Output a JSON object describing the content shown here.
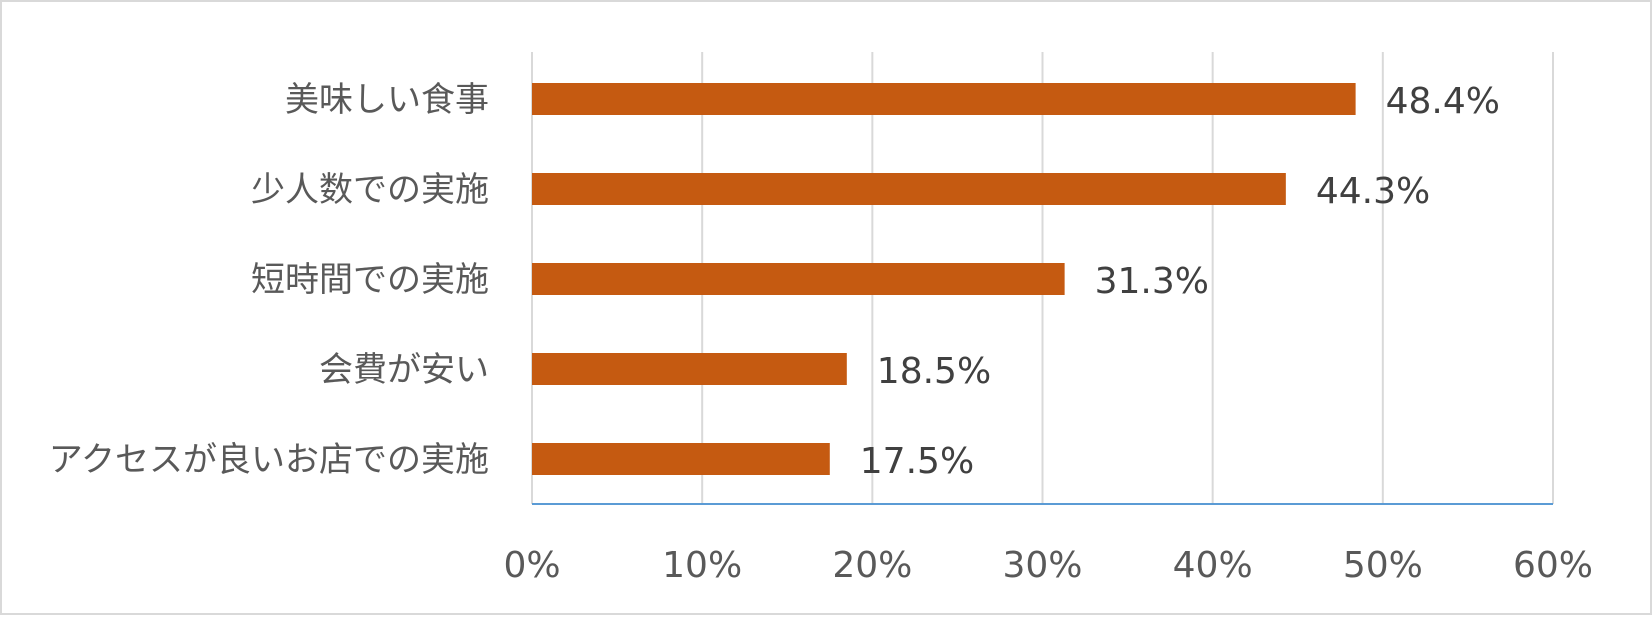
{
  "chart_data": {
    "type": "bar",
    "orientation": "horizontal",
    "categories": [
      "美味しい食事",
      "少人数での実施",
      "短時間での実施",
      "会費が安い",
      "アクセスが良いお店での実施"
    ],
    "values": [
      48.4,
      44.3,
      31.3,
      18.5,
      17.5
    ],
    "data_labels": [
      "48.4%",
      "44.3%",
      "31.3%",
      "18.5%",
      "17.5%"
    ],
    "xlim": [
      0,
      60
    ],
    "x_ticks": [
      0,
      10,
      20,
      30,
      40,
      50,
      60
    ],
    "x_tick_labels": [
      "0%",
      "10%",
      "20%",
      "30%",
      "40%",
      "50%",
      "60%"
    ],
    "grid": "vertical",
    "legend": "none",
    "colors": {
      "bar": "#C55A11",
      "grid": "#d9d9d9",
      "axis": "#5b9bd5"
    }
  }
}
